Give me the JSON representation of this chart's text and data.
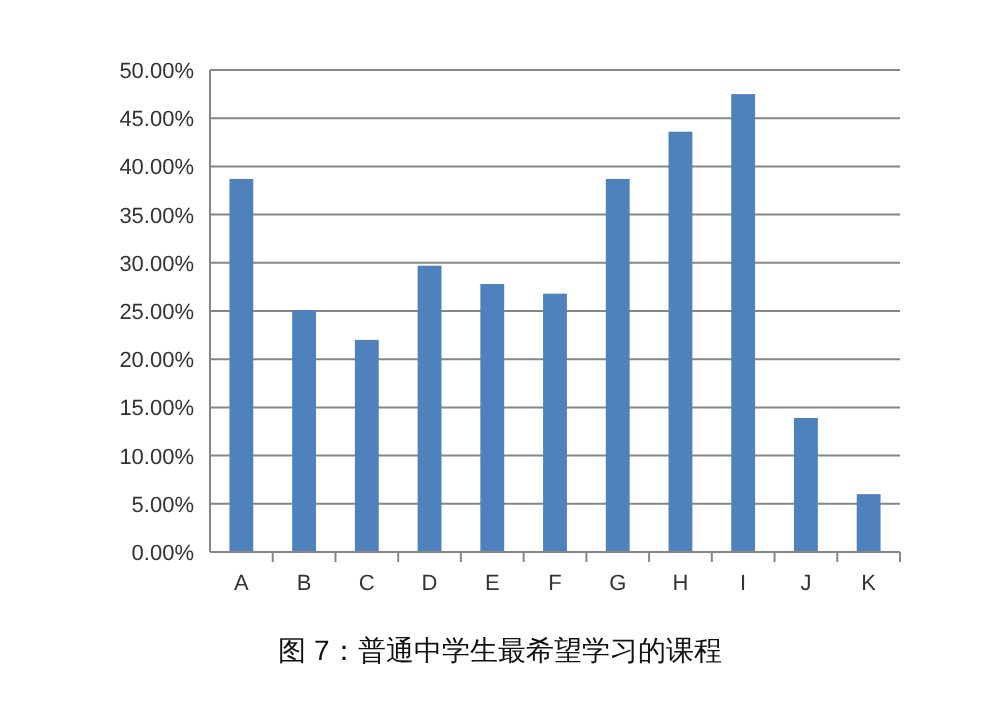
{
  "chart_data": {
    "type": "bar",
    "title": "图 7：普通中学生最希望学习的课程",
    "categories": [
      "A",
      "B",
      "C",
      "D",
      "E",
      "F",
      "G",
      "H",
      "I",
      "J",
      "K"
    ],
    "values": [
      38.7,
      25.1,
      22.0,
      29.7,
      27.8,
      26.8,
      38.7,
      43.6,
      47.5,
      13.9,
      6.0
    ],
    "color": "#4f81bd",
    "ylim": [
      0,
      50
    ],
    "yticks": [
      {
        "value": 0,
        "label": "0.00%"
      },
      {
        "value": 5,
        "label": "5.00%"
      },
      {
        "value": 10,
        "label": "10.00%"
      },
      {
        "value": 15,
        "label": "15.00%"
      },
      {
        "value": 20,
        "label": "20.00%"
      },
      {
        "value": 25,
        "label": "25.00%"
      },
      {
        "value": 30,
        "label": "30.00%"
      },
      {
        "value": 35,
        "label": "35.00%"
      },
      {
        "value": 40,
        "label": "40.00%"
      },
      {
        "value": 45,
        "label": "45.00%"
      },
      {
        "value": 50,
        "label": "50.00%"
      }
    ],
    "grid": "y"
  }
}
